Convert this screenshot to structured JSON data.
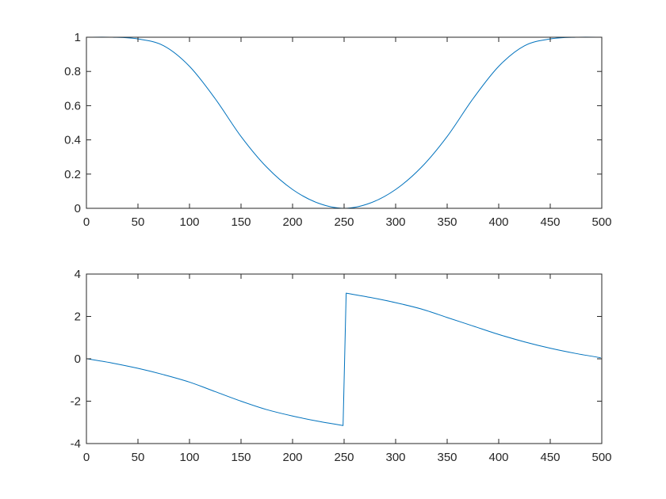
{
  "chart_data": [
    {
      "type": "line",
      "title": "",
      "xlabel": "",
      "ylabel": "",
      "xlim": [
        0,
        500
      ],
      "ylim": [
        0,
        1
      ],
      "xticks": [
        "0",
        "50",
        "100",
        "150",
        "200",
        "250",
        "300",
        "350",
        "400",
        "450",
        "500"
      ],
      "yticks": [
        "0",
        "0.2",
        "0.4",
        "0.6",
        "0.8",
        "1"
      ],
      "grid": false,
      "color": "#0072BD",
      "series": [
        {
          "x": [
            0,
            25,
            50,
            75,
            100,
            125,
            150,
            175,
            200,
            225,
            250,
            275,
            300,
            325,
            350,
            375,
            400,
            425,
            450,
            475,
            500
          ],
          "y": [
            1.0,
            1.0,
            0.99,
            0.95,
            0.83,
            0.64,
            0.42,
            0.24,
            0.11,
            0.03,
            0.0,
            0.03,
            0.11,
            0.24,
            0.42,
            0.64,
            0.83,
            0.95,
            0.99,
            1.0,
            1.0
          ]
        }
      ]
    },
    {
      "type": "line",
      "title": "",
      "xlabel": "",
      "ylabel": "",
      "xlim": [
        0,
        500
      ],
      "ylim": [
        -4,
        4
      ],
      "xticks": [
        "0",
        "50",
        "100",
        "150",
        "200",
        "250",
        "300",
        "350",
        "400",
        "450",
        "500"
      ],
      "yticks": [
        "-4",
        "-2",
        "0",
        "2",
        "4"
      ],
      "grid": false,
      "color": "#0072BD",
      "series": [
        {
          "x": [
            1,
            25,
            50,
            75,
            100,
            125,
            150,
            175,
            200,
            225,
            249,
            252,
            275,
            300,
            325,
            350,
            375,
            400,
            425,
            450,
            475,
            499
          ],
          "y": [
            0.0,
            -0.2,
            -0.45,
            -0.75,
            -1.1,
            -1.55,
            -2.0,
            -2.4,
            -2.7,
            -2.95,
            -3.15,
            3.1,
            2.9,
            2.65,
            2.35,
            1.95,
            1.55,
            1.15,
            0.8,
            0.5,
            0.25,
            0.05
          ]
        }
      ]
    }
  ]
}
